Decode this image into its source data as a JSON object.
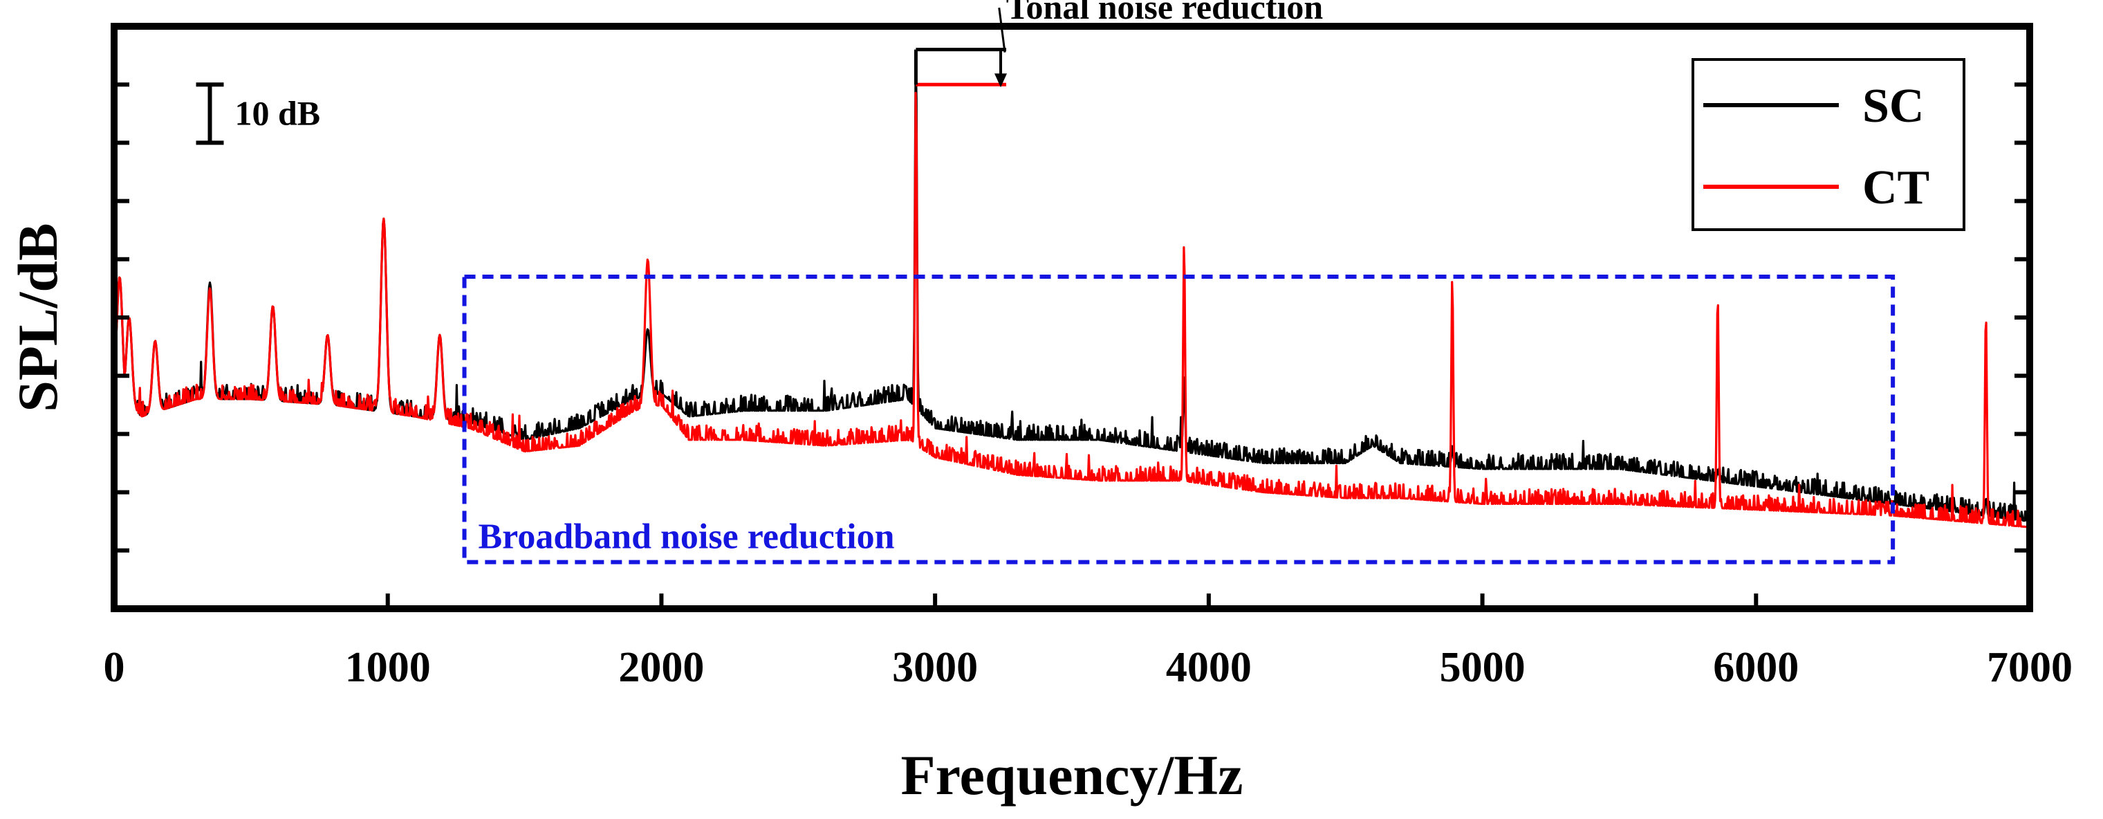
{
  "chart_data": {
    "type": "line",
    "title": "",
    "xlabel": "Frequency/Hz",
    "ylabel": "SPL/dB",
    "xlim": [
      0,
      7000
    ],
    "ylim": [
      0,
      100
    ],
    "x_ticks": [
      0,
      1000,
      2000,
      3000,
      4000,
      5000,
      6000,
      7000
    ],
    "x_tick_labels": [
      "0",
      "1000",
      "2000",
      "3000",
      "4000",
      "5000",
      "6000",
      "7000"
    ],
    "y_tick_values": [
      10,
      20,
      30,
      40,
      50,
      60,
      70,
      80,
      90
    ],
    "y_ticks_labeled": false,
    "grid": false,
    "legend": {
      "position": "top-right",
      "entries": [
        "SC",
        "CT"
      ]
    },
    "scale_bar": {
      "label": "10 dB",
      "y_from": 80,
      "y_to": 90,
      "x": 350
    },
    "series": [
      {
        "name": "SC",
        "color": "#000000",
        "baseline_anchors": [
          [
            0,
            38
          ],
          [
            100,
            33
          ],
          [
            300,
            36
          ],
          [
            500,
            36
          ],
          [
            800,
            35
          ],
          [
            1100,
            33
          ],
          [
            1300,
            32
          ],
          [
            1500,
            29
          ],
          [
            1700,
            31
          ],
          [
            1900,
            36
          ],
          [
            2000,
            37
          ],
          [
            2100,
            33
          ],
          [
            2300,
            34
          ],
          [
            2600,
            34
          ],
          [
            2900,
            36
          ],
          [
            3000,
            31
          ],
          [
            3300,
            29
          ],
          [
            3600,
            29
          ],
          [
            3900,
            27
          ],
          [
            4200,
            25
          ],
          [
            4500,
            25
          ],
          [
            4600,
            28
          ],
          [
            4700,
            25
          ],
          [
            5000,
            24
          ],
          [
            5500,
            24
          ],
          [
            6000,
            21
          ],
          [
            6500,
            18
          ],
          [
            7000,
            15
          ]
        ],
        "peaks": [
          {
            "f": 20,
            "h": 57
          },
          {
            "f": 55,
            "h": 50
          },
          {
            "f": 150,
            "h": 46
          },
          {
            "f": 350,
            "h": 56
          },
          {
            "f": 580,
            "h": 52
          },
          {
            "f": 780,
            "h": 47
          },
          {
            "f": 985,
            "h": 67
          },
          {
            "f": 1190,
            "h": 47
          },
          {
            "f": 1950,
            "h": 48
          },
          {
            "f": 2930,
            "h": 96
          },
          {
            "f": 3910,
            "h": 40
          },
          {
            "f": 4890,
            "h": 28
          },
          {
            "f": 5860,
            "h": 24
          },
          {
            "f": 6840,
            "h": 19
          }
        ],
        "noise_amplitude": 2.6,
        "seed": 7
      },
      {
        "name": "CT",
        "color": "#ff0000",
        "baseline_anchors": [
          [
            0,
            38
          ],
          [
            100,
            33
          ],
          [
            300,
            36
          ],
          [
            500,
            36
          ],
          [
            800,
            35
          ],
          [
            1100,
            33
          ],
          [
            1300,
            31
          ],
          [
            1500,
            27
          ],
          [
            1700,
            28
          ],
          [
            1900,
            34
          ],
          [
            2000,
            35
          ],
          [
            2100,
            29
          ],
          [
            2300,
            29
          ],
          [
            2600,
            28
          ],
          [
            2900,
            29
          ],
          [
            3000,
            26
          ],
          [
            3300,
            23
          ],
          [
            3600,
            22
          ],
          [
            3900,
            22
          ],
          [
            4200,
            20
          ],
          [
            4500,
            19
          ],
          [
            4700,
            19
          ],
          [
            5000,
            18
          ],
          [
            5500,
            18
          ],
          [
            6000,
            17
          ],
          [
            6500,
            16
          ],
          [
            7000,
            14
          ]
        ],
        "peaks": [
          {
            "f": 20,
            "h": 57
          },
          {
            "f": 55,
            "h": 50
          },
          {
            "f": 150,
            "h": 46
          },
          {
            "f": 350,
            "h": 55
          },
          {
            "f": 580,
            "h": 52
          },
          {
            "f": 780,
            "h": 47
          },
          {
            "f": 985,
            "h": 67
          },
          {
            "f": 1190,
            "h": 47
          },
          {
            "f": 1950,
            "h": 60
          },
          {
            "f": 2930,
            "h": 90
          },
          {
            "f": 3910,
            "h": 63
          },
          {
            "f": 4890,
            "h": 57
          },
          {
            "f": 5860,
            "h": 54
          },
          {
            "f": 6840,
            "h": 51
          }
        ],
        "noise_amplitude": 2.6,
        "seed": 19
      }
    ],
    "annotations": [
      {
        "name": "tonal",
        "text": "Tonal noise reduction",
        "peak_x": 2930,
        "from_y": 96,
        "to_y": 90,
        "bracket_end_x": 3260,
        "label_x": 3790,
        "label_y": 102,
        "color": "#000000"
      },
      {
        "name": "broadband",
        "text": "Broadband noise reduction",
        "box_x": [
          1280,
          6500
        ],
        "box_y": [
          8,
          57
        ],
        "color": "#1515e0"
      }
    ]
  }
}
